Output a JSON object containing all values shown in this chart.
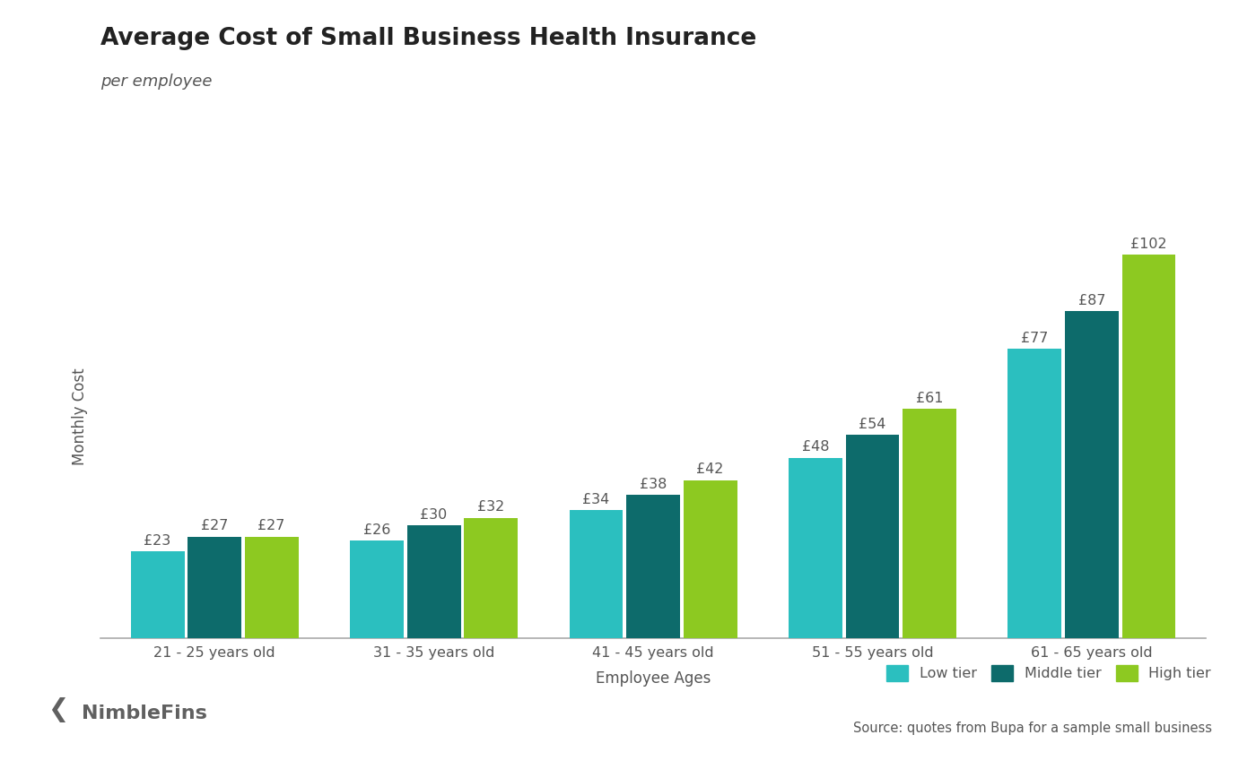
{
  "title": "Average Cost of Small Business Health Insurance",
  "subtitle": "per employee",
  "xlabel": "Employee Ages",
  "ylabel": "Monthly Cost",
  "categories": [
    "21 - 25 years old",
    "31 - 35 years old",
    "41 - 45 years old",
    "51 - 55 years old",
    "61 - 65 years old"
  ],
  "series": {
    "Low tier": [
      23,
      26,
      34,
      48,
      77
    ],
    "Middle tier": [
      27,
      30,
      38,
      54,
      87
    ],
    "High tier": [
      27,
      32,
      42,
      61,
      102
    ]
  },
  "colors": {
    "Low tier": "#2bbfbf",
    "Middle tier": "#0d6b6b",
    "High tier": "#8dc921"
  },
  "legend_labels": [
    "Low tier",
    "Middle tier",
    "High tier"
  ],
  "source_text": "Source: quotes from Bupa for a sample small business",
  "bar_width": 0.26,
  "ylim": [
    0,
    118
  ],
  "label_fontsize": 11.5,
  "title_fontsize": 19,
  "subtitle_fontsize": 13,
  "axis_label_fontsize": 12,
  "tick_fontsize": 11.5,
  "legend_fontsize": 11.5,
  "source_fontsize": 10.5,
  "nimblefins_fontsize": 16,
  "background_color": "#ffffff",
  "text_color": "#555555",
  "title_color": "#222222",
  "axis_color": "#aaaaaa"
}
